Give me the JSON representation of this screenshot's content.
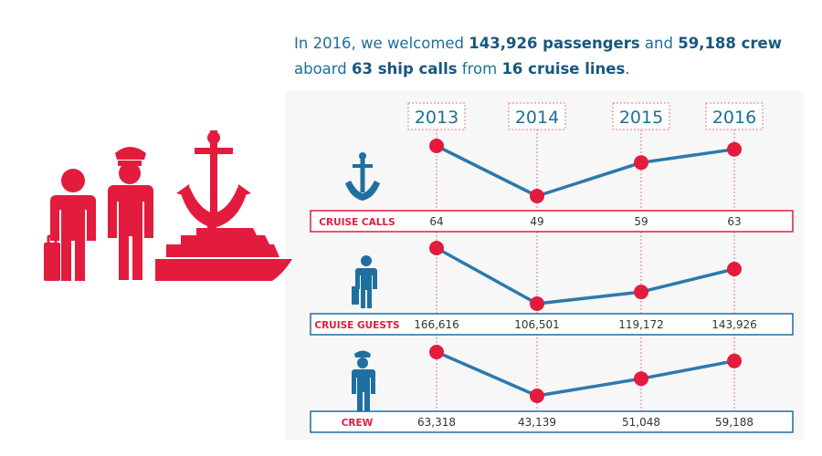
{
  "headline": {
    "prefix": "In 2016, we welcomed ",
    "passengers": "143,926 passengers",
    "mid1": " and ",
    "crew": "59,188 crew",
    "line2_prefix": "aboard ",
    "calls": "63 ship calls",
    "mid2": " from ",
    "lines": "16 cruise lines",
    "suffix": "."
  },
  "colors": {
    "accent_red": "#e31b3d",
    "accent_blue": "#1f6fa0",
    "line": "#2d79ad",
    "text": "#333333"
  },
  "icons": {
    "big": [
      "passenger-icon",
      "crew-member-icon",
      "anchor-icon",
      "cruise-ship-icon"
    ],
    "rows": [
      "anchor-icon",
      "passenger-icon",
      "crew-member-icon"
    ]
  },
  "chart_data": {
    "type": "line",
    "categories": [
      "2013",
      "2014",
      "2015",
      "2016"
    ],
    "series": [
      {
        "name": "CRUISE CALLS",
        "values": [
          64,
          49,
          59,
          63
        ],
        "labels": [
          "64",
          "49",
          "59",
          "63"
        ]
      },
      {
        "name": "CRUISE GUESTS",
        "values": [
          166616,
          106501,
          119172,
          143926
        ],
        "labels": [
          "166,616",
          "106,501",
          "119,172",
          "143,926"
        ]
      },
      {
        "name": "CREW",
        "values": [
          63318,
          43139,
          51048,
          59188
        ],
        "labels": [
          "63,318",
          "43,139",
          "51,048",
          "59,188"
        ]
      }
    ],
    "grid": false,
    "legend": "left"
  }
}
